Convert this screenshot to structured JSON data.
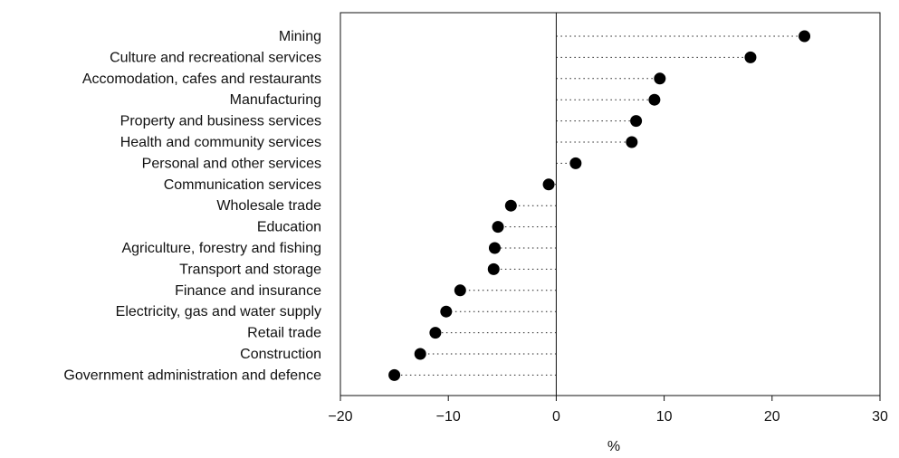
{
  "chart_data": {
    "type": "scatter",
    "style": "dot-plot",
    "title": "",
    "xlabel": "%",
    "ylabel": "",
    "xlim": [
      -20,
      30
    ],
    "xticks": [
      -20,
      -10,
      0,
      10,
      20,
      30
    ],
    "xtick_labels": [
      "−20",
      "−10",
      "0",
      "10",
      "20",
      "30"
    ],
    "grid": false,
    "categories": [
      "Mining",
      "Culture and recreational services",
      "Accomodation, cafes and restaurants",
      "Manufacturing",
      "Property and business services",
      "Health and community services",
      "Personal and other services",
      "Communication services",
      "Wholesale trade",
      "Education",
      "Agriculture, forestry and fishing",
      "Transport and storage",
      "Finance and insurance",
      "Electricity, gas and water supply",
      "Retail trade",
      "Construction",
      "Government administration and defence"
    ],
    "values": [
      23.0,
      18.0,
      9.6,
      9.1,
      7.4,
      7.0,
      1.8,
      -0.7,
      -4.2,
      -5.4,
      -5.7,
      -5.8,
      -8.9,
      -10.2,
      -11.2,
      -12.6,
      -15.0
    ]
  }
}
